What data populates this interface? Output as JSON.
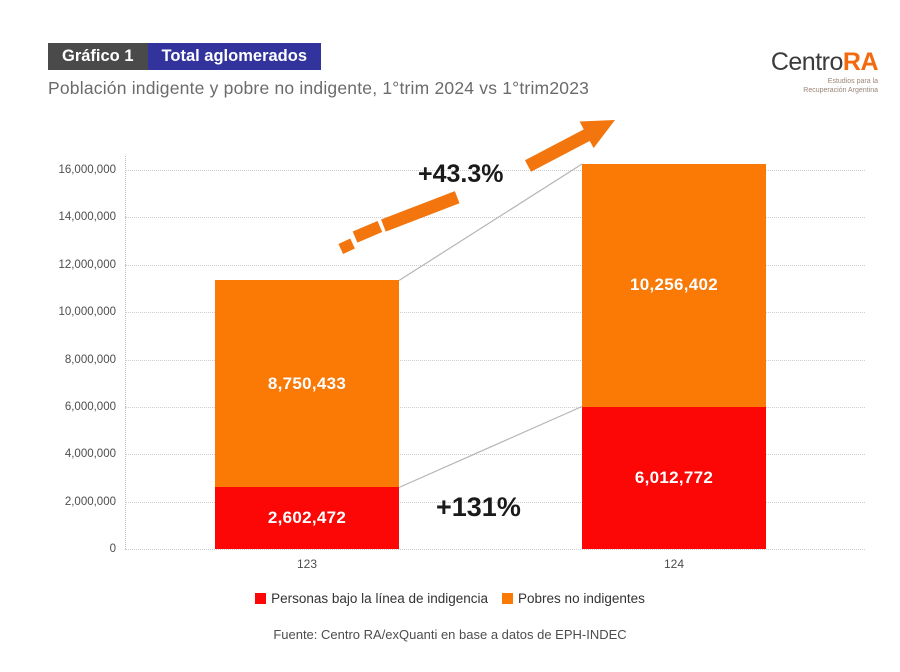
{
  "header": {
    "graph_label": "Gráfico 1",
    "graph_scope": "Total aglomerados",
    "subtitle": "Población indigente y pobre no indigente, 1°trim 2024 vs 1°trim2023"
  },
  "logo": {
    "name_primary": "Centro",
    "name_accent": "RA",
    "tagline_line1": "Estudios para la",
    "tagline_line2": "Recuperación Argentina"
  },
  "chart_data": {
    "type": "bar",
    "stacked": true,
    "title": "Población indigente y pobre no indigente, 1°trim 2024 vs 1°trim2023",
    "categories": [
      "123",
      "124"
    ],
    "series": [
      {
        "name": "Personas bajo la línea de indigencia",
        "color": "#fd0606",
        "values": [
          2602472,
          6012772
        ],
        "labels": [
          "2,602,472",
          "6,012,772"
        ]
      },
      {
        "name": "Pobres no indigentes",
        "color": "#fb7905",
        "values": [
          8750433,
          10256402
        ],
        "labels": [
          "8,750,433",
          "10,256,402"
        ]
      }
    ],
    "totals": [
      11352905,
      16269174
    ],
    "y_axis": {
      "min": 0,
      "max": 16000000,
      "step": 2000000,
      "tick_labels": [
        "0",
        "2,000,000",
        "4,000,000",
        "6,000,000",
        "8,000,000",
        "10,000,000",
        "12,000,000",
        "14,000,000",
        "16,000,000"
      ]
    },
    "annotations": [
      {
        "text": "+43.3%"
      },
      {
        "text": "+131%"
      }
    ],
    "legend_position": "bottom",
    "grid": "dotted-horizontal",
    "accent_arrow_color": "#f3750d"
  },
  "footer": {
    "source": "Fuente: Centro RA/exQuanti en base a datos de EPH-INDEC"
  }
}
